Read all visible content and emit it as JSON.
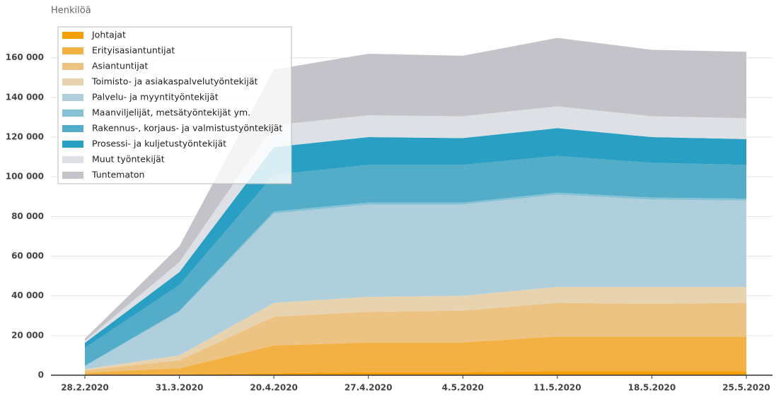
{
  "chart_data": {
    "type": "stacked_area",
    "y_label": "Henkilöä",
    "categories": [
      "28.2.2020",
      "31.3.2020",
      "20.4.2020",
      "27.4.2020",
      "4.5.2020",
      "11.5.2020",
      "18.5.2020",
      "25.5.2020"
    ],
    "series": [
      {
        "name": "Johtajat",
        "color": "#f5a000",
        "values": [
          300,
          400,
          1000,
          1500,
          1500,
          2000,
          2000,
          2000
        ]
      },
      {
        "name": "Erityisasiantuntijat",
        "color": "#f4b143",
        "values": [
          1000,
          3100,
          14000,
          15000,
          15000,
          17500,
          17500,
          17500
        ]
      },
      {
        "name": "Asiantuntijat",
        "color": "#ecc382",
        "values": [
          1200,
          4000,
          14500,
          15500,
          16000,
          17000,
          16500,
          17000
        ]
      },
      {
        "name": "Toimisto- ja asiakaspalvelutyöntekijät",
        "color": "#e8d3b0",
        "values": [
          500,
          2500,
          7000,
          7500,
          7500,
          8000,
          8500,
          8000
        ]
      },
      {
        "name": "Palvelu- ja myyntityöntekijät",
        "color": "#afcfdc",
        "values": [
          1500,
          22000,
          45000,
          46500,
          46000,
          46500,
          44000,
          43500
        ]
      },
      {
        "name": "Maanviljelijät, metsätyöntekijät ym.",
        "color": "#86c2d6",
        "values": [
          300,
          500,
          1000,
          1000,
          1000,
          1000,
          1000,
          1000
        ]
      },
      {
        "name": "Rakennus-, korjaus- ja valmistustyöntekijät",
        "color": "#53adc9",
        "values": [
          9000,
          13000,
          18500,
          19000,
          19000,
          18500,
          17500,
          17000
        ]
      },
      {
        "name": "Prosessi- ja kuljetustyöntekijät",
        "color": "#2a9fc4",
        "values": [
          2500,
          6500,
          14000,
          14000,
          13500,
          14000,
          13000,
          13000
        ]
      },
      {
        "name": "Muut työntekijät",
        "color": "#dde1e6",
        "values": [
          1000,
          5000,
          11000,
          11000,
          11000,
          11000,
          10500,
          10500
        ]
      },
      {
        "name": "Tuntematon",
        "color": "#c3c3c9",
        "values": [
          1200,
          8000,
          28000,
          31000,
          30500,
          34500,
          33500,
          33500
        ]
      }
    ],
    "ylim": [
      0,
      172000
    ],
    "yticks": [
      0,
      {
        "value": 20000,
        "label": "20 000"
      },
      {
        "value": 40000,
        "label": "40 000"
      },
      {
        "value": 60000,
        "label": "60 000"
      },
      {
        "value": 80000,
        "label": "80 000"
      },
      {
        "value": 100000,
        "label": "100 000"
      },
      {
        "value": 120000,
        "label": "120 000"
      },
      {
        "value": 140000,
        "label": "140 000"
      },
      {
        "value": 160000,
        "label": "160 000"
      }
    ],
    "grid": true,
    "legend": "top-left"
  }
}
